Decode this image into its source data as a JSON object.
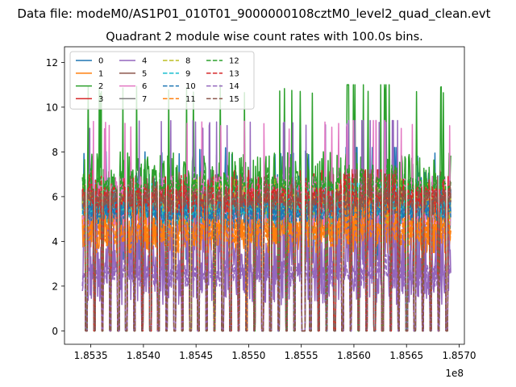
{
  "figure": {
    "suptitle": "Data file: modeM0/AS1P01_010T01_9000000108cztM0_level2_quad_clean.evt"
  },
  "chart_data": {
    "type": "line",
    "title": "Quadrant 2 module wise count rates with 100.0s bins.",
    "xlabel": "",
    "ylabel": "",
    "x_offset_label": "1e8",
    "xlim": [
      1.85325,
      1.85705
    ],
    "ylim": [
      -0.6,
      12.7
    ],
    "x_ticks": [
      1.8535,
      1.854,
      1.8545,
      1.855,
      1.8555,
      1.856,
      1.8565,
      1.857
    ],
    "x_tick_labels": [
      "1.8535",
      "1.8540",
      "1.8545",
      "1.8550",
      "1.8555",
      "1.8560",
      "1.8565",
      "1.8570"
    ],
    "y_ticks": [
      0,
      2,
      4,
      6,
      8,
      10,
      12
    ],
    "y_tick_labels": [
      "0",
      "2",
      "4",
      "6",
      "8",
      "10",
      "12"
    ],
    "x_range_data": [
      1.85342,
      1.85692
    ],
    "grid": false,
    "legend": {
      "position": "upper-left",
      "ncol": 4
    },
    "series": [
      {
        "name": "0",
        "color": "#1f77b4",
        "dash": "solid",
        "level": 5.8,
        "peak": 8.2,
        "low": 3.2
      },
      {
        "name": "1",
        "color": "#ff7f0e",
        "dash": "solid",
        "level": 4.5,
        "peak": 7.0,
        "low": 3.5
      },
      {
        "name": "2",
        "color": "#2ca02c",
        "dash": "solid",
        "level": 6.6,
        "peak": 11.0,
        "low": 5.5
      },
      {
        "name": "3",
        "color": "#d62728",
        "dash": "solid",
        "level": 6.2,
        "peak": 7.2,
        "low": 5.5
      },
      {
        "name": "4",
        "color": "#9467bd",
        "dash": "solid",
        "level": 3.0,
        "peak": 9.4,
        "low": 2.3
      },
      {
        "name": "5",
        "color": "#8c564b",
        "dash": "solid",
        "level": 6.0,
        "peak": 7.2,
        "low": 5.2
      },
      {
        "name": "6",
        "color": "#e377c2",
        "dash": "solid",
        "level": 5.8,
        "peak": 9.4,
        "low": 5.0
      },
      {
        "name": "7",
        "color": "#7f7f7f",
        "dash": "solid",
        "level": 5.6,
        "peak": 6.8,
        "low": 5.0
      },
      {
        "name": "8",
        "color": "#bcbd22",
        "dash": "dashed",
        "level": 5.7,
        "peak": 6.8,
        "low": 4.8
      },
      {
        "name": "9",
        "color": "#17becf",
        "dash": "dashed",
        "level": 5.5,
        "peak": 6.6,
        "low": 4.8
      },
      {
        "name": "10",
        "color": "#1f77b4",
        "dash": "dashed",
        "level": 5.4,
        "peak": 6.6,
        "low": 4.6
      },
      {
        "name": "11",
        "color": "#ff7f0e",
        "dash": "dashed",
        "level": 4.4,
        "peak": 6.0,
        "low": 3.5
      },
      {
        "name": "12",
        "color": "#2ca02c",
        "dash": "dashed",
        "level": 6.5,
        "peak": 7.4,
        "low": 5.8
      },
      {
        "name": "13",
        "color": "#d62728",
        "dash": "dashed",
        "level": 6.0,
        "peak": 7.0,
        "low": 5.3
      },
      {
        "name": "14",
        "color": "#9467bd",
        "dash": "dashed",
        "level": 2.6,
        "peak": 3.4,
        "low": 2.0
      },
      {
        "name": "15",
        "color": "#8c564b",
        "dash": "dashed",
        "level": 5.9,
        "peak": 7.0,
        "low": 5.2
      }
    ]
  }
}
